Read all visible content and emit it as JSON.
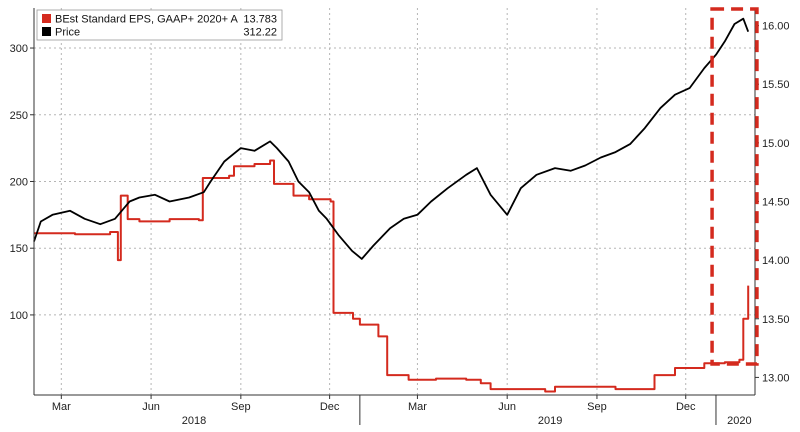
{
  "chart_data": {
    "type": "line",
    "title": "",
    "xlabel": "",
    "ylabel": "",
    "x_range": [
      "2018-02-01",
      "2020-02-10"
    ],
    "x_tick_labels": [
      {
        "label": "Mar",
        "date": "2018-03-01"
      },
      {
        "label": "Jun",
        "date": "2018-06-01"
      },
      {
        "label": "Sep",
        "date": "2018-09-01"
      },
      {
        "label": "Dec",
        "date": "2018-12-01"
      },
      {
        "label": "Mar",
        "date": "2019-03-01"
      },
      {
        "label": "Jun",
        "date": "2019-06-01"
      },
      {
        "label": "Sep",
        "date": "2019-09-01"
      },
      {
        "label": "Dec",
        "date": "2019-12-01"
      }
    ],
    "year_labels": [
      {
        "label": "2018",
        "date": "2018-07-15"
      },
      {
        "label": "2019",
        "date": "2019-07-15"
      },
      {
        "label": "2020",
        "date": "2020-01-25"
      }
    ],
    "year_dividers": [
      "2019-01-01",
      "2020-01-01"
    ],
    "y_left": {
      "range": [
        40,
        330
      ],
      "ticks": [
        100,
        150,
        200,
        250,
        300
      ],
      "tick_labels": [
        "100",
        "150",
        "200",
        "250",
        "300"
      ]
    },
    "y_right": {
      "range": [
        12.85,
        16.15
      ],
      "ticks": [
        13.0,
        13.5,
        14.0,
        14.5,
        15.0,
        15.5,
        16.0
      ],
      "tick_labels": [
        "13.00",
        "13.50",
        "14.00",
        "14.50",
        "15.00",
        "15.50",
        "16.00"
      ]
    },
    "grid": true,
    "legend_position": "top-left",
    "legend": [
      {
        "name": "BEst Standard EPS, GAAP+ 2020+ A",
        "value": "13.783",
        "color": "#d42a1e",
        "marker": "red-square"
      },
      {
        "name": "Price",
        "value": "312.22",
        "color": "#000000",
        "marker": "black-square"
      }
    ],
    "series": [
      {
        "name": "BEst Standard EPS, GAAP+ 2020+ A",
        "axis": "right",
        "color": "#d42a1e",
        "step": true,
        "points": [
          [
            "2018-02-01",
            14.23
          ],
          [
            "2018-03-15",
            14.22
          ],
          [
            "2018-04-20",
            14.24
          ],
          [
            "2018-04-28",
            14.0
          ],
          [
            "2018-05-01",
            14.55
          ],
          [
            "2018-05-08",
            14.35
          ],
          [
            "2018-05-20",
            14.33
          ],
          [
            "2018-06-20",
            14.35
          ],
          [
            "2018-07-20",
            14.34
          ],
          [
            "2018-07-24",
            14.7
          ],
          [
            "2018-08-20",
            14.72
          ],
          [
            "2018-08-25",
            14.8
          ],
          [
            "2018-09-15",
            14.82
          ],
          [
            "2018-10-01",
            14.85
          ],
          [
            "2018-10-05",
            14.65
          ],
          [
            "2018-10-25",
            14.55
          ],
          [
            "2018-11-10",
            14.52
          ],
          [
            "2018-12-02",
            14.5
          ],
          [
            "2018-12-05",
            13.55
          ],
          [
            "2018-12-25",
            13.5
          ],
          [
            "2019-01-01",
            13.45
          ],
          [
            "2019-01-20",
            13.35
          ],
          [
            "2019-01-29",
            13.02
          ],
          [
            "2019-02-20",
            12.98
          ],
          [
            "2019-03-20",
            12.99
          ],
          [
            "2019-04-20",
            12.98
          ],
          [
            "2019-05-05",
            12.95
          ],
          [
            "2019-05-15",
            12.9
          ],
          [
            "2019-06-20",
            12.9
          ],
          [
            "2019-07-10",
            12.88
          ],
          [
            "2019-07-20",
            12.92
          ],
          [
            "2019-08-20",
            12.92
          ],
          [
            "2019-09-20",
            12.9
          ],
          [
            "2019-10-20",
            12.9
          ],
          [
            "2019-10-30",
            13.02
          ],
          [
            "2019-11-20",
            13.08
          ],
          [
            "2019-12-20",
            13.12
          ],
          [
            "2020-01-10",
            13.13
          ],
          [
            "2020-01-25",
            13.15
          ],
          [
            "2020-01-29",
            13.5
          ],
          [
            "2020-02-03",
            13.783
          ]
        ]
      },
      {
        "name": "Price",
        "axis": "left",
        "color": "#000000",
        "step": false,
        "points": [
          [
            "2018-02-01",
            155
          ],
          [
            "2018-02-08",
            170
          ],
          [
            "2018-02-20",
            175
          ],
          [
            "2018-03-10",
            178
          ],
          [
            "2018-03-25",
            172
          ],
          [
            "2018-04-10",
            168
          ],
          [
            "2018-04-25",
            172
          ],
          [
            "2018-05-10",
            185
          ],
          [
            "2018-05-20",
            188
          ],
          [
            "2018-06-05",
            190
          ],
          [
            "2018-06-20",
            185
          ],
          [
            "2018-07-10",
            188
          ],
          [
            "2018-07-25",
            192
          ],
          [
            "2018-08-01",
            200
          ],
          [
            "2018-08-15",
            215
          ],
          [
            "2018-09-01",
            225
          ],
          [
            "2018-09-15",
            223
          ],
          [
            "2018-10-01",
            230
          ],
          [
            "2018-10-08",
            225
          ],
          [
            "2018-10-20",
            215
          ],
          [
            "2018-10-30",
            200
          ],
          [
            "2018-11-10",
            192
          ],
          [
            "2018-11-20",
            178
          ],
          [
            "2018-11-28",
            172
          ],
          [
            "2018-12-10",
            160
          ],
          [
            "2018-12-24",
            148
          ],
          [
            "2019-01-03",
            142
          ],
          [
            "2019-01-15",
            152
          ],
          [
            "2019-02-01",
            165
          ],
          [
            "2019-02-15",
            172
          ],
          [
            "2019-03-01",
            175
          ],
          [
            "2019-03-15",
            185
          ],
          [
            "2019-04-01",
            195
          ],
          [
            "2019-04-20",
            205
          ],
          [
            "2019-05-01",
            210
          ],
          [
            "2019-05-15",
            190
          ],
          [
            "2019-06-01",
            175
          ],
          [
            "2019-06-15",
            195
          ],
          [
            "2019-07-01",
            205
          ],
          [
            "2019-07-20",
            210
          ],
          [
            "2019-08-05",
            208
          ],
          [
            "2019-08-20",
            212
          ],
          [
            "2019-09-05",
            218
          ],
          [
            "2019-09-20",
            222
          ],
          [
            "2019-10-05",
            228
          ],
          [
            "2019-10-20",
            240
          ],
          [
            "2019-11-05",
            255
          ],
          [
            "2019-11-20",
            265
          ],
          [
            "2019-12-05",
            270
          ],
          [
            "2019-12-20",
            285
          ],
          [
            "2020-01-01",
            295
          ],
          [
            "2020-01-10",
            305
          ],
          [
            "2020-01-20",
            318
          ],
          [
            "2020-01-29",
            322
          ],
          [
            "2020-02-03",
            312.22
          ]
        ]
      }
    ],
    "annotations": [
      {
        "type": "dashed-rectangle",
        "color": "#d42a1e",
        "x_start": "2019-12-28",
        "x_end": "2020-02-12"
      }
    ]
  }
}
